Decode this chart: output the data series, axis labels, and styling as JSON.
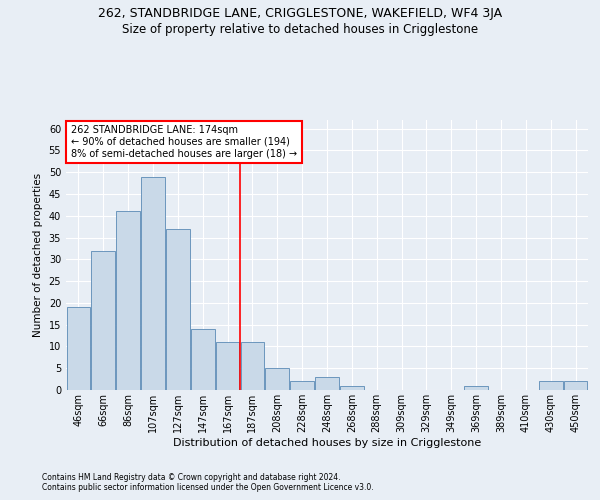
{
  "title_line1": "262, STANDBRIDGE LANE, CRIGGLESTONE, WAKEFIELD, WF4 3JA",
  "title_line2": "Size of property relative to detached houses in Crigglestone",
  "xlabel": "Distribution of detached houses by size in Crigglestone",
  "ylabel": "Number of detached properties",
  "footer_line1": "Contains HM Land Registry data © Crown copyright and database right 2024.",
  "footer_line2": "Contains public sector information licensed under the Open Government Licence v3.0.",
  "categories": [
    "46sqm",
    "66sqm",
    "86sqm",
    "107sqm",
    "127sqm",
    "147sqm",
    "167sqm",
    "187sqm",
    "208sqm",
    "228sqm",
    "248sqm",
    "268sqm",
    "288sqm",
    "309sqm",
    "329sqm",
    "349sqm",
    "369sqm",
    "389sqm",
    "410sqm",
    "430sqm",
    "450sqm"
  ],
  "values": [
    19,
    32,
    41,
    49,
    37,
    14,
    11,
    11,
    5,
    2,
    3,
    1,
    0,
    0,
    0,
    0,
    1,
    0,
    0,
    2,
    2
  ],
  "bar_color": "#c9d9e8",
  "bar_edge_color": "#5a8ab5",
  "vertical_line_x": 6.5,
  "vertical_line_color": "red",
  "annotation_text": "262 STANDBRIDGE LANE: 174sqm\n← 90% of detached houses are smaller (194)\n8% of semi-detached houses are larger (18) →",
  "annotation_box_color": "white",
  "annotation_box_edge_color": "red",
  "ylim": [
    0,
    62
  ],
  "yticks": [
    0,
    5,
    10,
    15,
    20,
    25,
    30,
    35,
    40,
    45,
    50,
    55,
    60
  ],
  "background_color": "#e8eef5",
  "plot_bg_color": "#e8eef5",
  "grid_color": "white",
  "title1_fontsize": 9,
  "title2_fontsize": 8.5,
  "xlabel_fontsize": 8,
  "ylabel_fontsize": 7.5,
  "footer_fontsize": 5.5,
  "annotation_fontsize": 7,
  "tick_fontsize": 7,
  "ytick_fontsize": 7
}
